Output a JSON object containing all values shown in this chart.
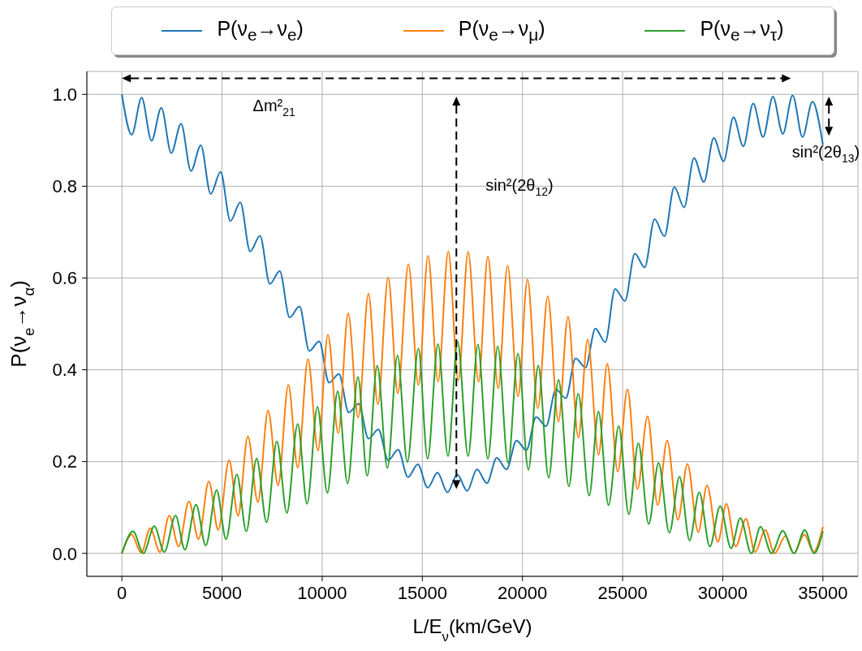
{
  "chart_data": {
    "type": "line",
    "xlabel": "L/E$_{ν}$(km/GeV)",
    "ylabel": "P(ν$_{e}$→ν$_{α}$)",
    "xlim": [
      -1750,
      36750
    ],
    "ylim": [
      -0.05,
      1.05
    ],
    "xticks": [
      0,
      5000,
      10000,
      15000,
      20000,
      25000,
      30000,
      35000
    ],
    "yticks": [
      {
        "value": 0,
        "label": "0.0"
      },
      {
        "value": 0.2,
        "label": "0.2"
      },
      {
        "value": 0.4,
        "label": "0.4"
      },
      {
        "value": 0.6,
        "label": "0.6"
      },
      {
        "value": 0.8,
        "label": "0.8"
      },
      {
        "value": 1,
        "label": "1.0"
      }
    ],
    "grid": true,
    "legend": "top",
    "series": [
      {
        "name": "P(ν$_{e}$→ν$_{e}$)",
        "color": "#1f77b4",
        "x": [
          0,
          492.5,
          985,
          1477.5,
          1970,
          2462.5,
          2955,
          3447.5,
          3940,
          4432.5,
          4925,
          5417.5,
          5910,
          6402.5,
          6895,
          7387.5,
          7880,
          8372.5,
          8865,
          9357.5,
          9850,
          10342.5,
          10835,
          11327.5,
          11820,
          12312.5,
          12805,
          13297.5,
          13790,
          14282.5,
          14775,
          15267.5,
          15760,
          16252.5,
          16745,
          17237.5,
          17730,
          18222.5,
          18715,
          19207.5,
          19700,
          20192.5,
          20685,
          21177.5,
          21670,
          22162.5,
          22655,
          23147.5,
          23640,
          24132.5,
          24625,
          25117.5,
          25610,
          26102.5,
          26595,
          27087.5,
          27580,
          28072.5,
          28565,
          29057.5,
          29550,
          30042.5,
          30535,
          31027.5,
          31520,
          32012.5,
          32505,
          32997.5,
          33490,
          33982.5,
          34475,
          35000
        ],
        "values": [
          1.0,
          0.912,
          0.993,
          0.899,
          0.971,
          0.872,
          0.936,
          0.833,
          0.889,
          0.783,
          0.831,
          0.724,
          0.765,
          0.658,
          0.692,
          0.587,
          0.615,
          0.514,
          0.538,
          0.441,
          0.462,
          0.372,
          0.391,
          0.307,
          0.326,
          0.25,
          0.27,
          0.203,
          0.226,
          0.166,
          0.194,
          0.143,
          0.176,
          0.133,
          0.172,
          0.136,
          0.183,
          0.153,
          0.208,
          0.183,
          0.246,
          0.225,
          0.297,
          0.277,
          0.357,
          0.338,
          0.425,
          0.405,
          0.49,
          0.46,
          0.576,
          0.55,
          0.653,
          0.623,
          0.728,
          0.691,
          0.798,
          0.754,
          0.861,
          0.809,
          0.905,
          0.854,
          0.95,
          0.887,
          0.98,
          0.907,
          0.995,
          0.914,
          0.998,
          0.907,
          0.984,
          0.89
        ]
      },
      {
        "name": "P(ν$_{e}$→ν$_{μ}$)",
        "color": "#ff7f0e",
        "x": [
          0,
          486,
          963,
          1416,
          1898,
          2367,
          2833,
          3347,
          3828,
          4342,
          4808,
          5354,
          5800,
          6289,
          6787,
          7301,
          7799,
          8313,
          8778,
          9292,
          9790,
          10287,
          10801,
          11299,
          11797,
          12311,
          12780,
          13295,
          13776,
          14307,
          14803,
          15287,
          15783,
          16299,
          16795,
          17288,
          17807,
          18272,
          18786,
          19256,
          19781,
          20251,
          20765,
          21263,
          21793,
          22275,
          22789,
          23255,
          23800,
          24233,
          24758,
          25245,
          25741,
          26245,
          26753,
          27224,
          27765,
          28236,
          28777,
          29215,
          29757,
          30182,
          30644,
          31161,
          31613,
          32124,
          32589,
          33136,
          33552,
          34070,
          34539,
          35000
        ],
        "values": [
          0,
          0.041,
          0.001,
          0.055,
          0.003,
          0.082,
          0.015,
          0.113,
          0.031,
          0.157,
          0.051,
          0.203,
          0.082,
          0.255,
          0.112,
          0.311,
          0.148,
          0.367,
          0.187,
          0.423,
          0.224,
          0.476,
          0.262,
          0.523,
          0.296,
          0.566,
          0.325,
          0.601,
          0.349,
          0.63,
          0.367,
          0.648,
          0.374,
          0.658,
          0.377,
          0.657,
          0.374,
          0.647,
          0.36,
          0.627,
          0.342,
          0.597,
          0.316,
          0.56,
          0.287,
          0.516,
          0.252,
          0.466,
          0.215,
          0.413,
          0.178,
          0.357,
          0.14,
          0.299,
          0.105,
          0.246,
          0.073,
          0.195,
          0.046,
          0.148,
          0.025,
          0.108,
          0.015,
          0.075,
          0.003,
          0.051,
          0,
          0.038,
          0,
          0.041,
          0.003,
          0.058
        ]
      },
      {
        "name": "P(ν$_{e}$→ν$_{τ}$)",
        "color": "#2ca02c",
        "x": [
          0,
          558,
          1072,
          1619,
          2117,
          2679,
          3144,
          3703,
          4188,
          4731,
          5200,
          5742,
          6212,
          6726,
          7224,
          7738,
          8236,
          8778,
          9248,
          9762,
          10259,
          10773,
          11271,
          11785,
          12250,
          12748,
          13256,
          13760,
          14252,
          14803,
          15263,
          15783,
          16281,
          16762,
          17288,
          17774,
          18272,
          18766,
          19284,
          19777,
          20296,
          20789,
          21308,
          21801,
          22319,
          22783,
          23331,
          23795,
          24298,
          24808,
          25310,
          25788,
          26302,
          26798,
          27333,
          27842,
          28345,
          28826,
          29356,
          29870,
          30413,
          30878,
          31425,
          31886,
          32437,
          32993,
          33558,
          34096,
          34564,
          35000
        ],
        "values": [
          0,
          0.048,
          0,
          0.059,
          0.003,
          0.082,
          0.008,
          0.106,
          0.017,
          0.138,
          0.031,
          0.172,
          0.048,
          0.207,
          0.068,
          0.244,
          0.088,
          0.282,
          0.108,
          0.319,
          0.132,
          0.353,
          0.152,
          0.384,
          0.169,
          0.409,
          0.186,
          0.431,
          0.199,
          0.446,
          0.206,
          0.456,
          0.212,
          0.461,
          0.212,
          0.455,
          0.206,
          0.451,
          0.197,
          0.435,
          0.182,
          0.409,
          0.165,
          0.378,
          0.146,
          0.348,
          0.126,
          0.309,
          0.105,
          0.277,
          0.085,
          0.24,
          0.064,
          0.197,
          0.045,
          0.167,
          0.028,
          0.133,
          0.015,
          0.103,
          0.011,
          0.077,
          0,
          0.058,
          0,
          0.049,
          0,
          0.051,
          0,
          0.048
        ]
      }
    ],
    "annotations": [
      "Δm²$_{21}$",
      "sin²(2θ$_{12}$)",
      "sin²(2θ$_{13}$)"
    ]
  }
}
